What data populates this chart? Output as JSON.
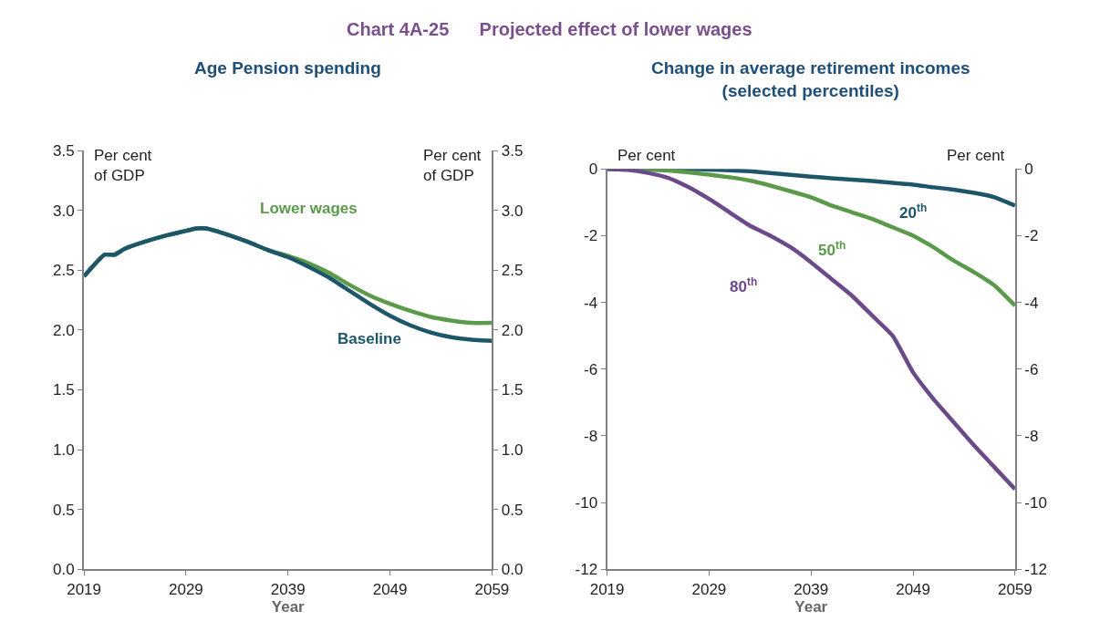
{
  "chart_data": [
    {
      "type": "line",
      "title": "Chart 4A-25      Projected effect of lower wages",
      "subtitle": "Age Pension spending",
      "xlabel": "Year",
      "ylabel": "Per cent\nof GDP",
      "y2label": "Per cent\nof GDP",
      "x": [
        2019,
        2021,
        2022,
        2023,
        2025,
        2027,
        2029,
        2030,
        2031,
        2033,
        2035,
        2037,
        2039,
        2041,
        2043,
        2045,
        2047,
        2049,
        2051,
        2053,
        2055,
        2057,
        2059
      ],
      "series": [
        {
          "name": "Lower wages",
          "color": "#5b9a4a",
          "values": [
            2.45,
            2.63,
            2.63,
            2.68,
            2.74,
            2.79,
            2.83,
            2.85,
            2.85,
            2.8,
            2.74,
            2.67,
            2.62,
            2.56,
            2.48,
            2.38,
            2.29,
            2.22,
            2.16,
            2.11,
            2.08,
            2.06,
            2.06
          ]
        },
        {
          "name": "Baseline",
          "color": "#1d5569",
          "values": [
            2.45,
            2.63,
            2.63,
            2.68,
            2.74,
            2.79,
            2.83,
            2.85,
            2.85,
            2.8,
            2.74,
            2.67,
            2.61,
            2.53,
            2.44,
            2.33,
            2.22,
            2.12,
            2.04,
            1.98,
            1.94,
            1.92,
            1.91
          ]
        }
      ],
      "xlim": [
        2019,
        2059
      ],
      "xticks": [
        2019,
        2029,
        2039,
        2049,
        2059
      ],
      "ylim": [
        0,
        3.5
      ],
      "yticks": [
        {
          "value": 0,
          "label": "0.0"
        },
        0.5,
        {
          "value": 1,
          "label": "1.0"
        },
        1.5,
        {
          "value": 2,
          "label": "2.0"
        },
        2.5,
        {
          "value": 3,
          "label": "3.0"
        },
        3.5
      ],
      "y2lim": [
        0,
        3.5
      ],
      "y2ticks": [
        {
          "value": 0,
          "label": "0.0"
        },
        0.5,
        {
          "value": 1,
          "label": "1.0"
        },
        1.5,
        {
          "value": 2,
          "label": "2.0"
        },
        2.5,
        {
          "value": 3,
          "label": "3.0"
        },
        3.5
      ],
      "legend": false
    },
    {
      "type": "line",
      "subtitle": "Change in average retirement incomes\n(selected percentiles)",
      "xlabel": "Year",
      "ylabel": "Per cent",
      "y2label": "Per cent",
      "x": [
        2019,
        2021,
        2023,
        2025,
        2027,
        2029,
        2031,
        2033,
        2035,
        2037,
        2039,
        2041,
        2043,
        2045,
        2047,
        2049,
        2051,
        2053,
        2055,
        2057,
        2059
      ],
      "series": [
        {
          "name": "20$^{th}$",
          "color": "#1d5569",
          "values": [
            0,
            0,
            0,
            0,
            0,
            -0.02,
            -0.04,
            -0.07,
            -0.12,
            -0.18,
            -0.23,
            -0.28,
            -0.32,
            -0.36,
            -0.42,
            -0.47,
            -0.55,
            -0.62,
            -0.72,
            -0.85,
            -1.1
          ]
        },
        {
          "name": "50$^{th}$",
          "color": "#5b9a4a",
          "values": [
            0,
            0,
            -0.02,
            -0.05,
            -0.1,
            -0.17,
            -0.25,
            -0.35,
            -0.5,
            -0.67,
            -0.85,
            -1.1,
            -1.3,
            -1.5,
            -1.75,
            -2.0,
            -2.35,
            -2.75,
            -3.1,
            -3.5,
            -4.1
          ]
        },
        {
          "name": "80$^{th}$",
          "color": "#6b4a8a",
          "values": [
            0,
            -0.03,
            -0.12,
            -0.27,
            -0.55,
            -0.9,
            -1.3,
            -1.7,
            -2.0,
            -2.35,
            -2.8,
            -3.3,
            -3.8,
            -4.4,
            -5.0,
            -6.1,
            -6.9,
            -7.6,
            -8.3,
            -8.95,
            -9.6
          ]
        }
      ],
      "xlim": [
        2019,
        2059
      ],
      "xticks": [
        2019,
        2029,
        2039,
        2049,
        2059
      ],
      "ylim": [
        -12,
        0
      ],
      "yticks": [
        -12,
        -10,
        -8,
        -6,
        -4,
        -2,
        0
      ],
      "y2lim": [
        -12,
        0
      ],
      "y2ticks": [
        -12,
        -10,
        -8,
        -6,
        -4,
        -2,
        0
      ],
      "legend": false
    }
  ]
}
